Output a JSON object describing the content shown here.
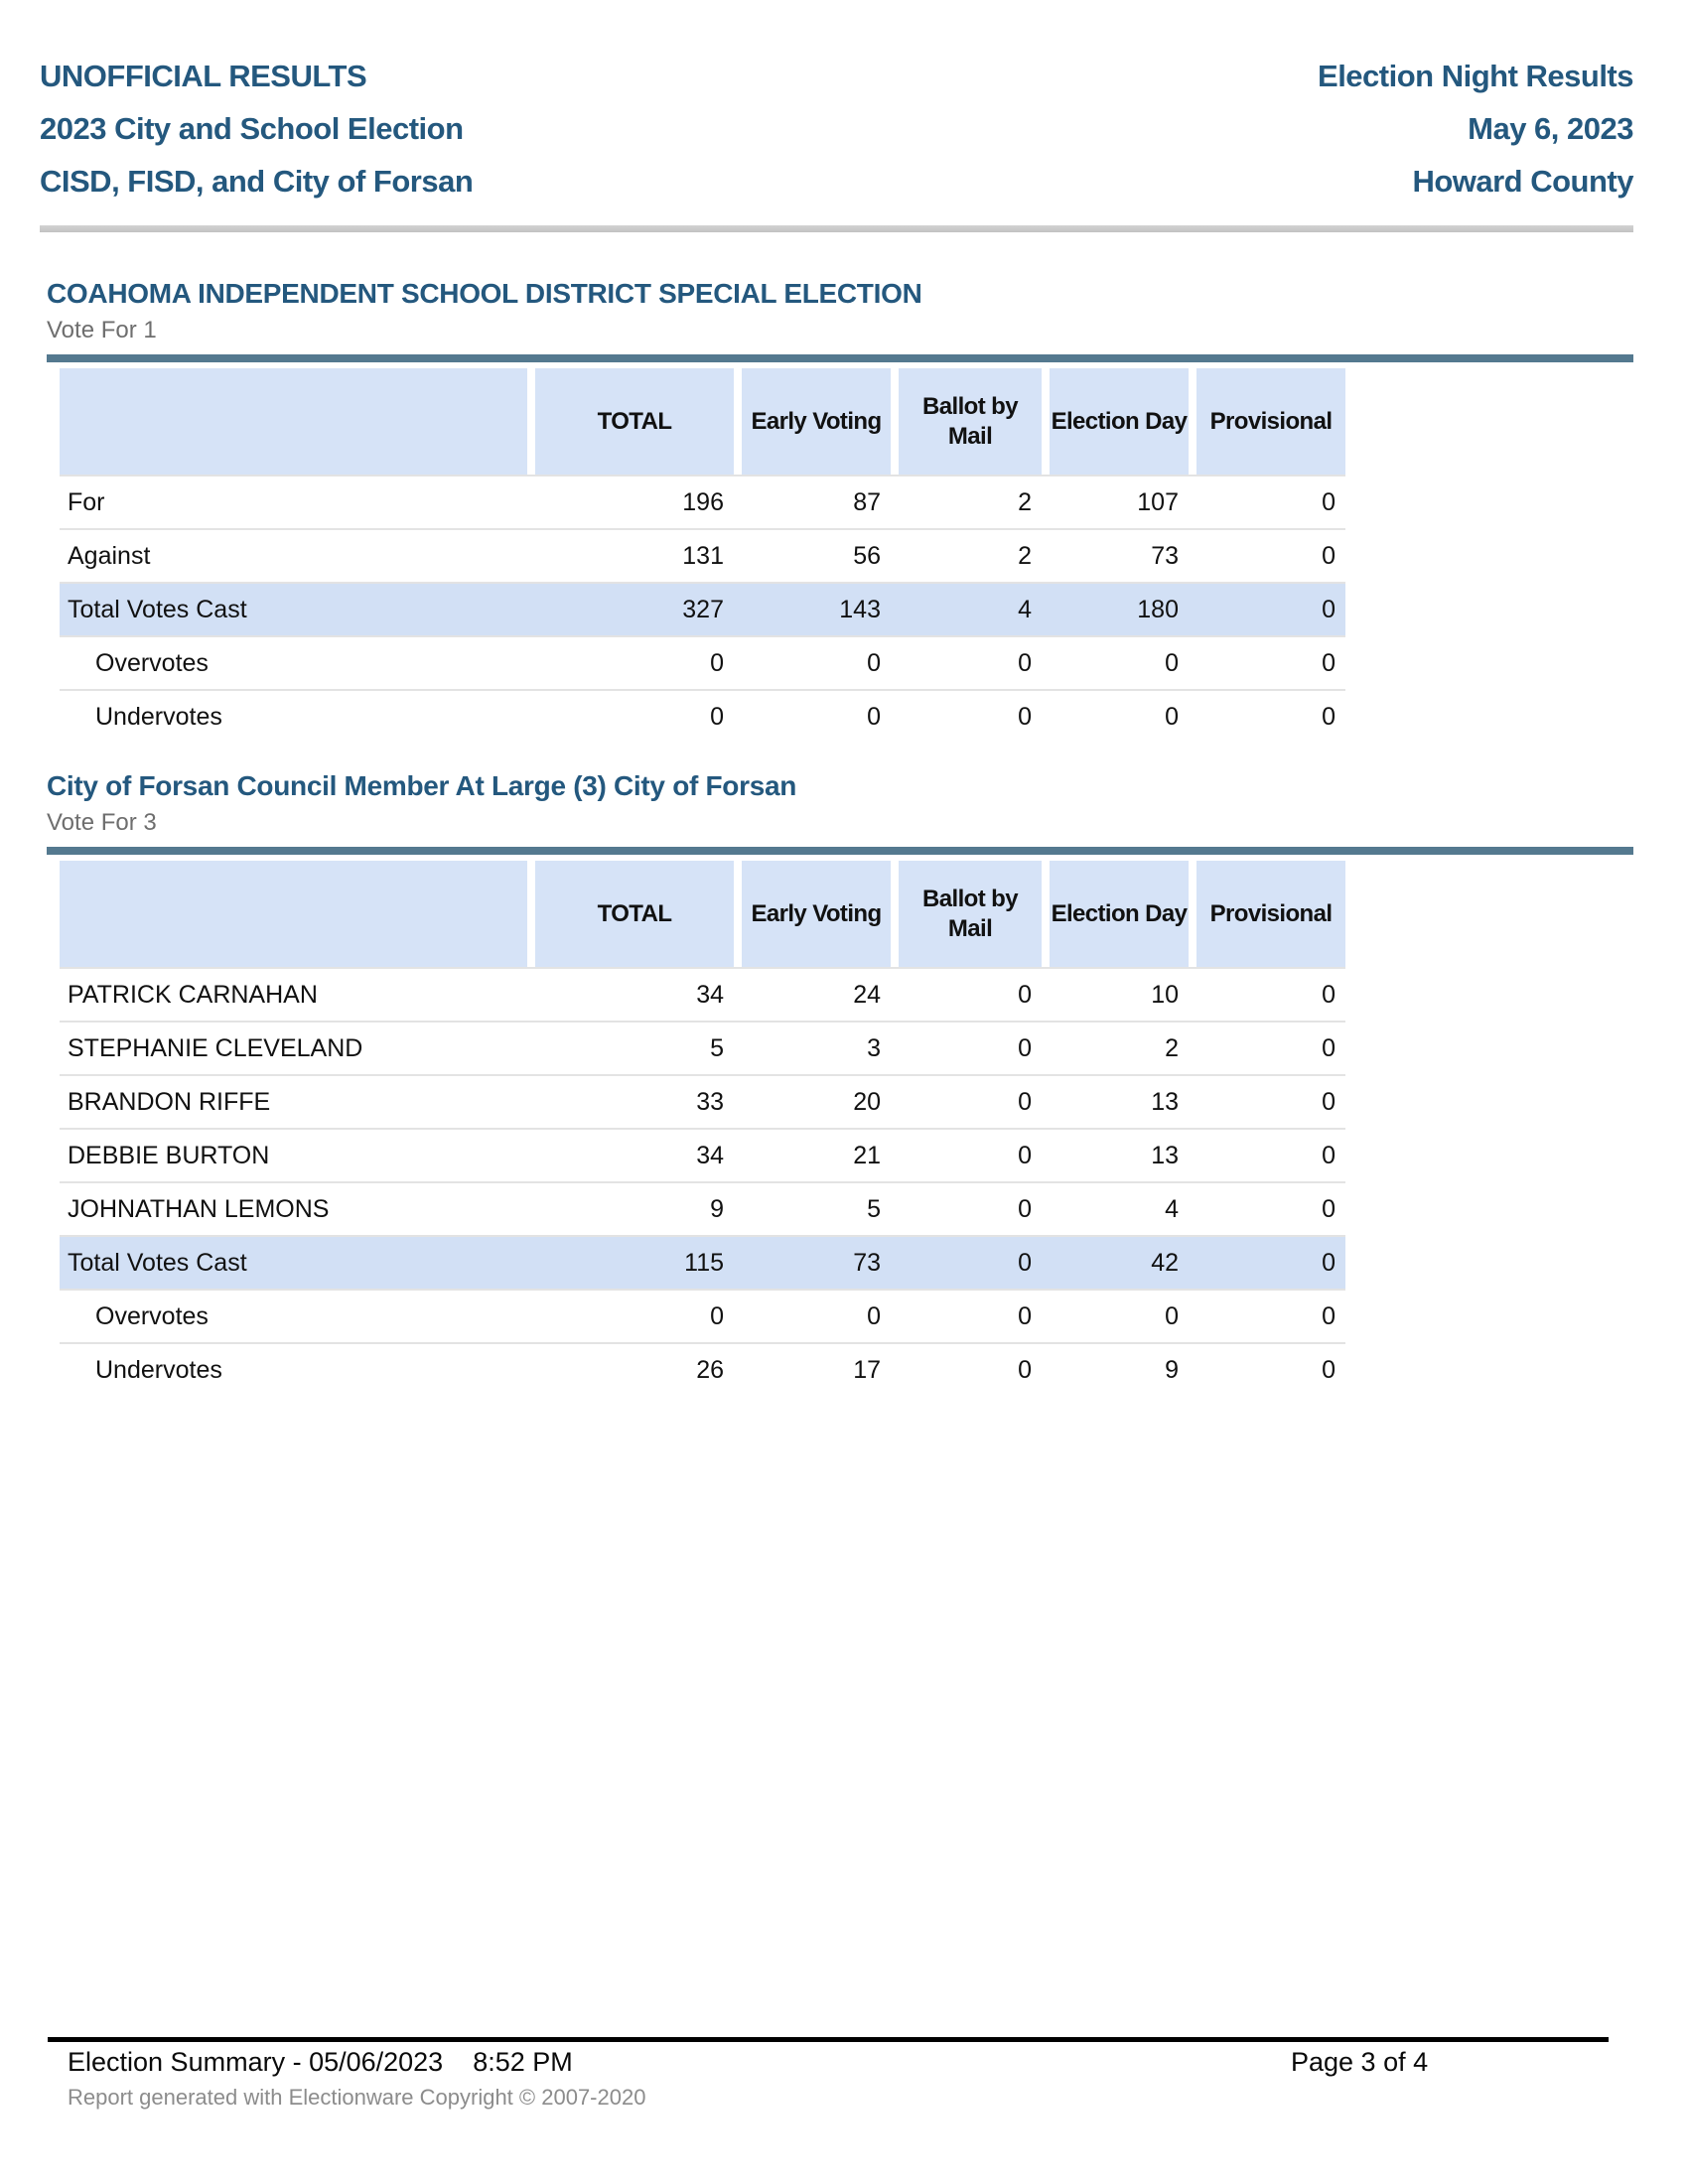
{
  "colors": {
    "blue": "#24587e",
    "slate": "#54798f",
    "cellblue": "#d6e3f7",
    "totalblue": "#d2e0f5",
    "graytext": "#6e6e6e",
    "graytext2": "#8c8c8c",
    "separator": "#e3e3e3"
  },
  "header": {
    "left": [
      "UNOFFICIAL RESULTS",
      "2023 City and School Election",
      "CISD, FISD, and City of Forsan"
    ],
    "right": [
      "Election Night Results",
      "May 6, 2023",
      "Howard County"
    ]
  },
  "contests": [
    {
      "title": "COAHOMA INDEPENDENT SCHOOL DISTRICT SPECIAL ELECTION",
      "vote_for": "Vote For 1",
      "columns": [
        "TOTAL",
        "Early Voting",
        "Ballot by Mail",
        "Election Day",
        "Provisional"
      ],
      "rows": [
        {
          "label": "For",
          "type": "normal",
          "values": [
            196,
            87,
            2,
            107,
            0
          ]
        },
        {
          "label": "Against",
          "type": "normal",
          "values": [
            131,
            56,
            2,
            73,
            0
          ]
        },
        {
          "label": "Total Votes Cast",
          "type": "total",
          "values": [
            327,
            143,
            4,
            180,
            0
          ]
        },
        {
          "label": "Overvotes",
          "type": "indent",
          "values": [
            0,
            0,
            0,
            0,
            0
          ]
        },
        {
          "label": "Undervotes",
          "type": "indent",
          "values": [
            0,
            0,
            0,
            0,
            0
          ]
        }
      ]
    },
    {
      "title": "City of Forsan Council Member At Large (3) City of Forsan",
      "vote_for": "Vote For 3",
      "columns": [
        "TOTAL",
        "Early Voting",
        "Ballot by Mail",
        "Election Day",
        "Provisional"
      ],
      "rows": [
        {
          "label": "PATRICK CARNAHAN",
          "type": "normal",
          "values": [
            34,
            24,
            0,
            10,
            0
          ]
        },
        {
          "label": "STEPHANIE CLEVELAND",
          "type": "normal",
          "values": [
            5,
            3,
            0,
            2,
            0
          ]
        },
        {
          "label": "BRANDON RIFFE",
          "type": "normal",
          "values": [
            33,
            20,
            0,
            13,
            0
          ]
        },
        {
          "label": "DEBBIE BURTON",
          "type": "normal",
          "values": [
            34,
            21,
            0,
            13,
            0
          ]
        },
        {
          "label": "JOHNATHAN LEMONS",
          "type": "normal",
          "values": [
            9,
            5,
            0,
            4,
            0
          ]
        },
        {
          "label": "Total Votes Cast",
          "type": "total",
          "values": [
            115,
            73,
            0,
            42,
            0
          ]
        },
        {
          "label": "Overvotes",
          "type": "indent",
          "values": [
            0,
            0,
            0,
            0,
            0
          ]
        },
        {
          "label": "Undervotes",
          "type": "indent",
          "values": [
            26,
            17,
            0,
            9,
            0
          ]
        }
      ]
    }
  ],
  "footer": {
    "summary": "Election Summary - 05/06/2023    8:52 PM",
    "page": "Page 3 of 4",
    "generated": "Report generated with Electionware Copyright © 2007-2020"
  }
}
